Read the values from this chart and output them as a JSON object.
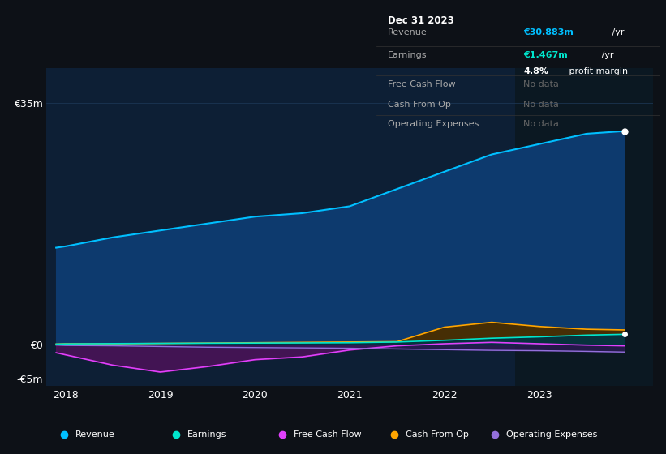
{
  "bg_color": "#0d1117",
  "chart_bg": "#0d1f35",
  "grid_color": "#1e3a5a",
  "years": [
    2017.9,
    2018.0,
    2018.5,
    2019.0,
    2019.5,
    2020.0,
    2020.5,
    2021.0,
    2021.5,
    2022.0,
    2022.5,
    2023.0,
    2023.5,
    2023.9
  ],
  "revenue": [
    14.0,
    14.2,
    15.5,
    16.5,
    17.5,
    18.5,
    19.0,
    20.0,
    22.5,
    25.0,
    27.5,
    29.0,
    30.5,
    30.883
  ],
  "earnings": [
    0.05,
    0.08,
    0.12,
    0.15,
    0.18,
    0.2,
    0.22,
    0.25,
    0.35,
    0.6,
    0.9,
    1.1,
    1.35,
    1.467
  ],
  "free_cash_flow": [
    -1.2,
    -1.5,
    -3.0,
    -4.0,
    -3.2,
    -2.2,
    -1.8,
    -0.8,
    -0.2,
    0.1,
    0.3,
    0.1,
    -0.1,
    -0.2
  ],
  "cash_from_op": [
    0.05,
    0.1,
    0.1,
    0.15,
    0.2,
    0.25,
    0.3,
    0.35,
    0.4,
    2.5,
    3.2,
    2.6,
    2.2,
    2.1
  ],
  "operating_expenses": [
    -0.1,
    -0.15,
    -0.2,
    -0.3,
    -0.4,
    -0.45,
    -0.5,
    -0.55,
    -0.65,
    -0.75,
    -0.85,
    -0.9,
    -1.0,
    -1.1
  ],
  "revenue_color": "#00bfff",
  "earnings_color": "#00e5cc",
  "fcf_color": "#e040fb",
  "cop_color": "#ffa500",
  "opex_color": "#9370db",
  "ylim_min": -6,
  "ylim_max": 40,
  "xlim_min": 2017.8,
  "xlim_max": 2024.2,
  "xticks": [
    2018,
    2019,
    2020,
    2021,
    2022,
    2023
  ],
  "yticks": [
    -5,
    0,
    35
  ],
  "info_box": {
    "date": "Dec 31 2023",
    "revenue_label": "Revenue",
    "revenue_value": "€30.883m",
    "revenue_unit": " /yr",
    "earnings_label": "Earnings",
    "earnings_value": "€1.467m",
    "earnings_unit": " /yr",
    "margin_label": "4.8%",
    "margin_text": " profit margin",
    "fcf_label": "Free Cash Flow",
    "fcf_value": "No data",
    "cop_label": "Cash From Op",
    "cop_value": "No data",
    "opex_label": "Operating Expenses",
    "opex_value": "No data"
  },
  "legend_items": [
    {
      "label": "Revenue",
      "color": "#00bfff"
    },
    {
      "label": "Earnings",
      "color": "#00e5cc"
    },
    {
      "label": "Free Cash Flow",
      "color": "#e040fb"
    },
    {
      "label": "Cash From Op",
      "color": "#ffa500"
    },
    {
      "label": "Operating Expenses",
      "color": "#9370db"
    }
  ],
  "highlight_x_start": 2022.75,
  "highlight_x_end": 2024.2
}
